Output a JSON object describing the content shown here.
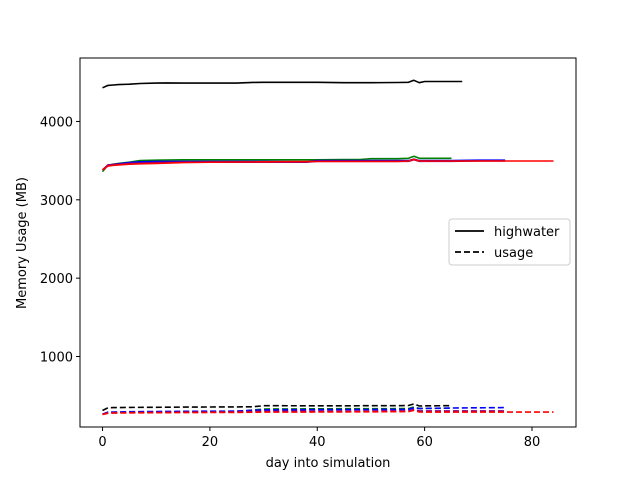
{
  "chart_data": {
    "type": "line",
    "title": "",
    "xlabel": "day into simulation",
    "ylabel": "Memory Usage (MB)",
    "xlim": [
      -4.2,
      88.2
    ],
    "ylim": [
      100,
      4810
    ],
    "xticks": [
      0,
      20,
      40,
      60,
      80
    ],
    "yticks": [
      1000,
      2000,
      3000,
      4000
    ],
    "grid": false,
    "legend": {
      "position": "center-right",
      "entries": [
        {
          "label": "highwater",
          "style": "solid"
        },
        {
          "label": "usage",
          "style": "dashed"
        }
      ]
    },
    "series": [
      {
        "name": "highwater (black)",
        "color": "#000000",
        "style": "solid",
        "x": [
          0,
          1,
          2,
          3,
          5,
          7,
          10,
          12,
          15,
          20,
          25,
          28,
          30,
          40,
          45,
          50,
          55,
          57,
          58,
          59,
          60,
          67
        ],
        "y": [
          4430,
          4460,
          4465,
          4470,
          4475,
          4485,
          4490,
          4492,
          4490,
          4490,
          4490,
          4498,
          4500,
          4500,
          4495,
          4495,
          4497,
          4500,
          4525,
          4495,
          4510,
          4510
        ]
      },
      {
        "name": "highwater (green)",
        "color": "#008000",
        "style": "solid",
        "x": [
          0,
          1,
          2,
          3,
          5,
          7,
          10,
          15,
          20,
          30,
          40,
          45,
          48,
          50,
          55,
          57,
          58,
          59,
          60,
          65
        ],
        "y": [
          3360,
          3440,
          3455,
          3465,
          3480,
          3500,
          3505,
          3510,
          3510,
          3510,
          3510,
          3515,
          3515,
          3525,
          3525,
          3530,
          3555,
          3530,
          3530,
          3530
        ]
      },
      {
        "name": "highwater (blue)",
        "color": "#0000ff",
        "style": "solid",
        "x": [
          0,
          1,
          2,
          3,
          5,
          7,
          10,
          15,
          20,
          30,
          38,
          40,
          45,
          50,
          55,
          57,
          58,
          59,
          60,
          65,
          70,
          75
        ],
        "y": [
          3380,
          3440,
          3450,
          3460,
          3475,
          3485,
          3490,
          3490,
          3490,
          3490,
          3485,
          3500,
          3500,
          3500,
          3500,
          3500,
          3520,
          3500,
          3500,
          3500,
          3505,
          3505
        ]
      },
      {
        "name": "highwater (purple)",
        "color": "#800080",
        "style": "solid",
        "x": [
          0,
          1,
          2,
          3,
          5,
          7,
          10,
          15,
          20,
          30,
          38,
          40,
          45,
          50,
          55,
          57,
          58,
          59,
          60,
          65,
          70,
          75
        ],
        "y": [
          3380,
          3445,
          3450,
          3455,
          3465,
          3470,
          3475,
          3480,
          3480,
          3480,
          3480,
          3492,
          3492,
          3492,
          3492,
          3492,
          3512,
          3492,
          3492,
          3492,
          3495,
          3495
        ]
      },
      {
        "name": "highwater (red)",
        "color": "#ff0000",
        "style": "solid",
        "x": [
          0,
          1,
          2,
          3,
          5,
          7,
          10,
          15,
          20,
          30,
          40,
          45,
          50,
          55,
          57,
          58,
          59,
          60,
          65,
          70,
          75,
          84
        ],
        "y": [
          3380,
          3430,
          3440,
          3445,
          3455,
          3460,
          3465,
          3475,
          3480,
          3485,
          3490,
          3490,
          3490,
          3490,
          3495,
          3518,
          3495,
          3495,
          3495,
          3495,
          3495,
          3495
        ]
      },
      {
        "name": "usage (black)",
        "color": "#000000",
        "style": "dashed",
        "x": [
          0,
          1,
          2,
          5,
          10,
          15,
          20,
          25,
          28,
          30,
          40,
          45,
          50,
          55,
          57,
          58,
          59,
          60,
          65
        ],
        "y": [
          310,
          345,
          348,
          350,
          352,
          354,
          355,
          357,
          358,
          372,
          370,
          370,
          372,
          372,
          375,
          395,
          368,
          370,
          372
        ]
      },
      {
        "name": "usage (green)",
        "color": "#008000",
        "style": "dashed",
        "x": [
          0,
          1,
          2,
          5,
          10,
          15,
          20,
          25,
          30,
          40,
          45,
          50,
          55,
          57,
          58,
          59,
          60,
          65
        ],
        "y": [
          260,
          285,
          288,
          290,
          293,
          295,
          297,
          298,
          330,
          332,
          333,
          334,
          335,
          336,
          355,
          338,
          338,
          340
        ]
      },
      {
        "name": "usage (blue)",
        "color": "#0000ff",
        "style": "dashed",
        "x": [
          0,
          1,
          2,
          5,
          10,
          15,
          20,
          25,
          30,
          40,
          45,
          50,
          55,
          57,
          58,
          59,
          60,
          65,
          70,
          75
        ],
        "y": [
          265,
          290,
          292,
          295,
          298,
          300,
          302,
          303,
          320,
          322,
          323,
          324,
          325,
          326,
          345,
          335,
          338,
          342,
          345,
          348
        ]
      },
      {
        "name": "usage (purple)",
        "color": "#800080",
        "style": "dashed",
        "x": [
          0,
          1,
          2,
          5,
          10,
          15,
          20,
          25,
          30,
          40,
          45,
          50,
          55,
          57,
          58,
          59,
          60,
          65,
          70,
          75
        ],
        "y": [
          262,
          282,
          284,
          286,
          288,
          290,
          292,
          294,
          300,
          302,
          303,
          304,
          305,
          306,
          322,
          306,
          306,
          306,
          306,
          306
        ]
      },
      {
        "name": "usage (red)",
        "color": "#ff0000",
        "style": "dashed",
        "x": [
          0,
          1,
          2,
          5,
          10,
          15,
          20,
          25,
          30,
          40,
          45,
          50,
          55,
          57,
          58,
          59,
          60,
          65,
          70,
          75,
          84
        ],
        "y": [
          260,
          275,
          278,
          280,
          282,
          284,
          285,
          286,
          290,
          292,
          293,
          294,
          295,
          296,
          312,
          292,
          290,
          290,
          290,
          290,
          290
        ]
      }
    ]
  }
}
